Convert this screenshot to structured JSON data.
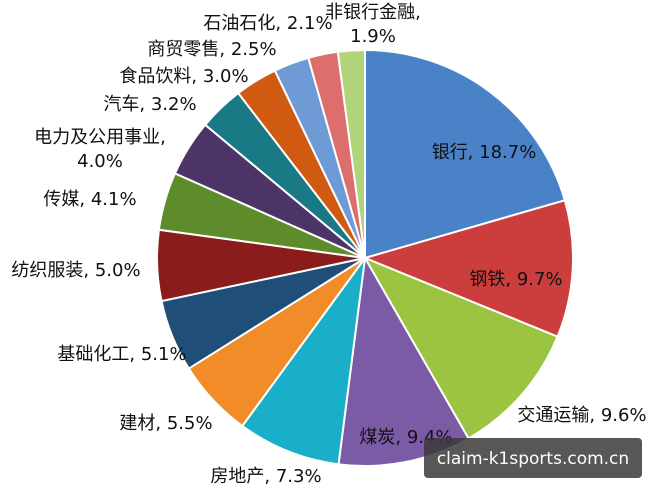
{
  "chart_data": {
    "type": "pie",
    "title": "",
    "slices": [
      {
        "label": "银行",
        "value": 18.7,
        "text": "银行, 18.7%",
        "color": "#4a82c8"
      },
      {
        "label": "钢铁",
        "value": 9.7,
        "text": "钢铁, 9.7%",
        "color": "#cc3d3d"
      },
      {
        "label": "交通运输",
        "value": 9.6,
        "text": "交通运输, 9.6%",
        "color": "#9bc440"
      },
      {
        "label": "煤炭",
        "value": 9.4,
        "text": "煤炭, 9.4%",
        "color": "#7b5aa6"
      },
      {
        "label": "房地产",
        "value": 7.3,
        "text": "房地产, 7.3%",
        "color": "#1aafc8"
      },
      {
        "label": "建材",
        "value": 5.5,
        "text": "建材, 5.5%",
        "color": "#f28c28"
      },
      {
        "label": "基础化工",
        "value": 5.1,
        "text": "基础化工, 5.1%",
        "color": "#1f4e79"
      },
      {
        "label": "纺织服装",
        "value": 5.0,
        "text": "纺织服装, 5.0%",
        "color": "#8b1c1c"
      },
      {
        "label": "传媒",
        "value": 4.1,
        "text": "传媒, 4.1%",
        "color": "#5f8c2a"
      },
      {
        "label": "电力及公用事业",
        "value": 4.0,
        "text": "电力及公用事业,\n4.0%",
        "color": "#4c3466"
      },
      {
        "label": "汽车",
        "value": 3.2,
        "text": "汽车, 3.2%",
        "color": "#197a86"
      },
      {
        "label": "食品饮料",
        "value": 3.0,
        "text": "食品饮料, 3.0%",
        "color": "#d05a12"
      },
      {
        "label": "商贸零售",
        "value": 2.5,
        "text": "商贸零售, 2.5%",
        "color": "#6e9bd6"
      },
      {
        "label": "石油石化",
        "value": 2.1,
        "text": "石油石化, 2.1%",
        "color": "#dd6e6e"
      },
      {
        "label": "非银行金融",
        "value": 1.9,
        "text": "非银行金融,\n1.9%",
        "color": "#b1d47a"
      }
    ]
  },
  "watermark": "claim-k1sports.com.cn"
}
